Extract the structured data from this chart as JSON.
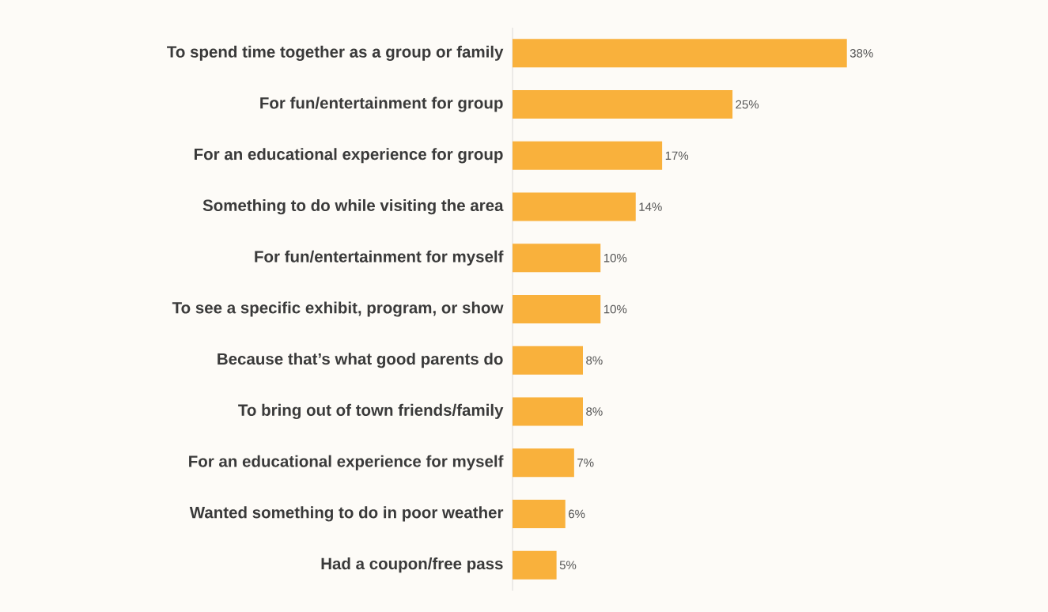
{
  "chart_data": {
    "type": "bar",
    "orientation": "horizontal",
    "categories": [
      "To spend time together as a group or family",
      "For fun/entertainment for group",
      "For an educational experience for group",
      "Something to do while visiting the area",
      "For fun/entertainment for myself",
      "To see a specific exhibit, program, or show",
      "Because that’s what good parents do",
      "To bring out of town friends/family",
      "For an educational experience for myself",
      "Wanted something to do in poor weather",
      "Had a coupon/free pass"
    ],
    "values": [
      38,
      25,
      17,
      14,
      10,
      10,
      8,
      8,
      7,
      6,
      5
    ],
    "value_labels": [
      "38%",
      "25%",
      "17%",
      "14%",
      "10%",
      "10%",
      "8%",
      "8%",
      "7%",
      "6%",
      "5%"
    ],
    "color": "#f9b13c",
    "tick_labels": "y"
  }
}
